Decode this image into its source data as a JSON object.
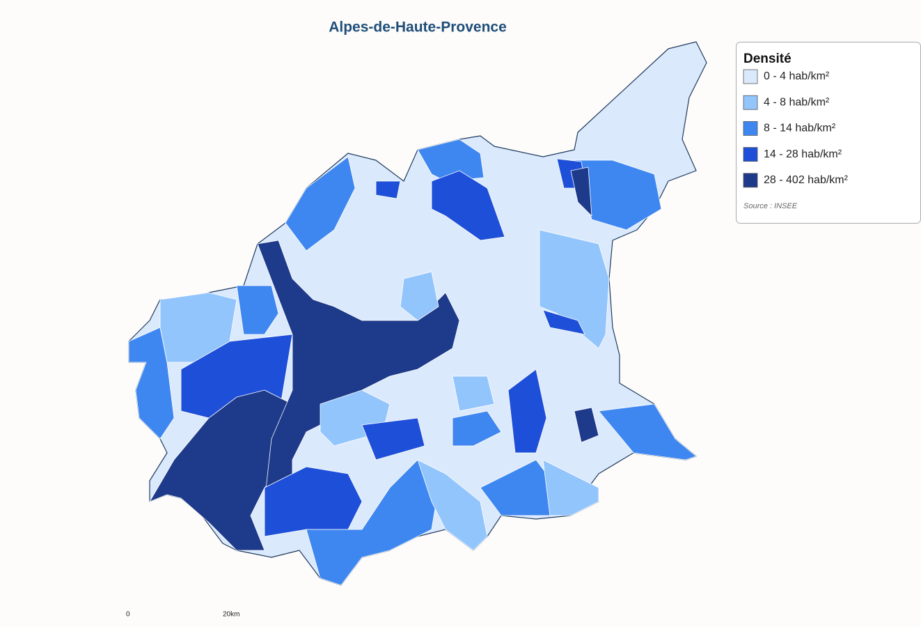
{
  "title": "Alpes-de-Haute-Provence",
  "legend": {
    "title": "Densité",
    "items": [
      {
        "label": "0 - 4 hab/km²",
        "color": "#dbe9fc"
      },
      {
        "label": "4 - 8 hab/km²",
        "color": "#93c5fd"
      },
      {
        "label": "8 - 14 hab/km²",
        "color": "#3f87f0"
      },
      {
        "label": "14 - 28 hab/km²",
        "color": "#1e4fd8"
      },
      {
        "label": "28 - 402 hab/km²",
        "color": "#1e3a8a"
      }
    ],
    "source": "Source : INSEE"
  },
  "scale": {
    "start": "0",
    "end": "20km"
  }
}
